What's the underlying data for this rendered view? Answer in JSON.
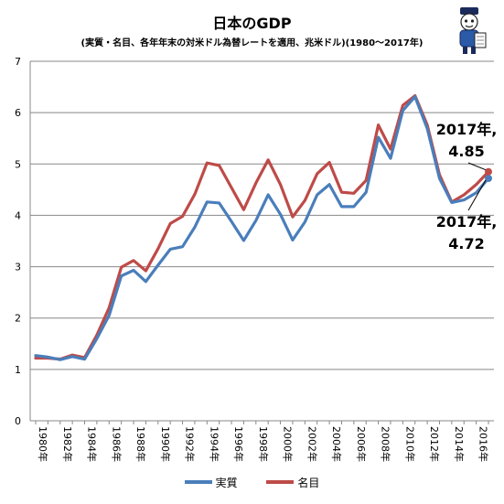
{
  "chart_data": {
    "type": "line",
    "title": "日本のGDP",
    "subtitle": "(実質・名目、各年年末の対米ドル為替レートを適用、兆米ドル)(1980～2017年)",
    "x": [
      1980,
      1981,
      1982,
      1983,
      1984,
      1985,
      1986,
      1987,
      1988,
      1989,
      1990,
      1991,
      1992,
      1993,
      1994,
      1995,
      1996,
      1997,
      1998,
      1999,
      2000,
      2001,
      2002,
      2003,
      2004,
      2005,
      2006,
      2007,
      2008,
      2009,
      2010,
      2011,
      2012,
      2013,
      2014,
      2015,
      2016,
      2017
    ],
    "tick_labels": [
      "1980年",
      "1982年",
      "1984年",
      "1986年",
      "1988年",
      "1990年",
      "1992年",
      "1994年",
      "1996年",
      "1998年",
      "2000年",
      "2002年",
      "2004年",
      "2006年",
      "2008年",
      "2010年",
      "2012年",
      "2014年",
      "2016年"
    ],
    "y_tick_labels": [
      "0",
      "1",
      "2",
      "3",
      "4",
      "5",
      "6",
      "7"
    ],
    "ylim": [
      0,
      7
    ],
    "grid": "horizontal",
    "legend_position": "bottom",
    "series": [
      {
        "name": "実質",
        "color": "#4a7ebb",
        "values": [
          1.27,
          1.24,
          1.19,
          1.25,
          1.2,
          1.6,
          2.05,
          2.82,
          2.93,
          2.71,
          3.03,
          3.34,
          3.39,
          3.77,
          4.26,
          4.24,
          3.88,
          3.51,
          3.9,
          4.4,
          4.02,
          3.52,
          3.87,
          4.4,
          4.6,
          4.17,
          4.17,
          4.45,
          5.52,
          5.11,
          6.04,
          6.31,
          5.69,
          4.72,
          4.25,
          4.3,
          4.44,
          4.72
        ]
      },
      {
        "name": "名目",
        "color": "#be4b48",
        "values": [
          1.22,
          1.22,
          1.2,
          1.28,
          1.23,
          1.67,
          2.2,
          2.99,
          3.12,
          2.92,
          3.35,
          3.84,
          3.98,
          4.41,
          5.02,
          4.97,
          4.54,
          4.11,
          4.63,
          5.08,
          4.6,
          3.97,
          4.29,
          4.81,
          5.03,
          4.45,
          4.43,
          4.68,
          5.76,
          5.29,
          6.14,
          6.33,
          5.76,
          4.79,
          4.26,
          4.4,
          4.6,
          4.85
        ]
      }
    ],
    "annotations": [
      {
        "series": "名目",
        "line1": "2017年,",
        "line2": "4.85"
      },
      {
        "series": "実質",
        "line1": "2017年,",
        "line2": "4.72"
      }
    ]
  }
}
